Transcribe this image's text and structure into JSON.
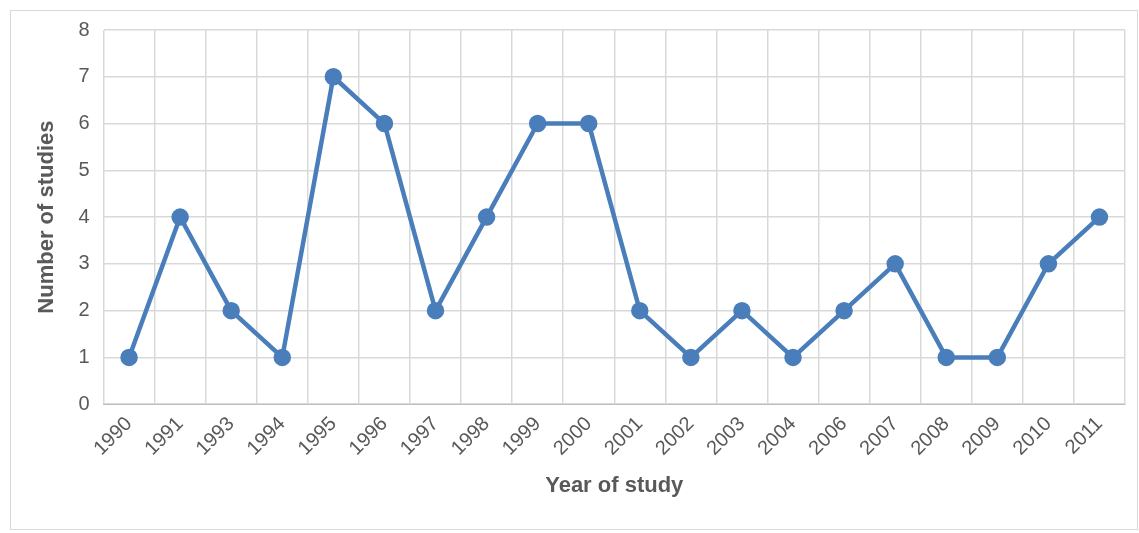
{
  "chart_data": {
    "type": "line",
    "xlabel": "Year of study",
    "ylabel": "Number of studies",
    "categories": [
      "1990",
      "1991",
      "1993",
      "1994",
      "1995",
      "1996",
      "1997",
      "1998",
      "1999",
      "2000",
      "2001",
      "2002",
      "2003",
      "2004",
      "2006",
      "2007",
      "2008",
      "2009",
      "2010",
      "2011"
    ],
    "series": [
      {
        "color": "#4a7ebb",
        "values": [
          1,
          4,
          2,
          1,
          7,
          6,
          2,
          4,
          6,
          6,
          2,
          1,
          2,
          1,
          2,
          3,
          1,
          1,
          3,
          4
        ]
      }
    ],
    "ylim": [
      0,
      8
    ],
    "yticks": [
      0,
      1,
      2,
      3,
      4,
      5,
      6,
      7,
      8
    ],
    "grid": true,
    "legend": false,
    "marker": "circle",
    "line_style": "solid"
  }
}
